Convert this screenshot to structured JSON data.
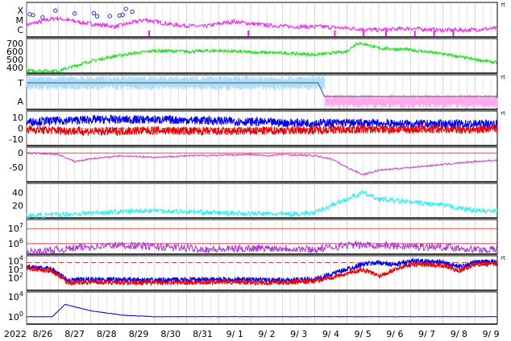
{
  "figure": {
    "date_year": "2022",
    "date_labels": [
      "8/26",
      "8/27",
      "8/28",
      "8/29",
      "8/30",
      "8/31",
      "9/ 1",
      "9/ 2",
      "9/ 3",
      "9/ 4",
      "9/ 5",
      "9/ 6",
      "9/ 7",
      "9/ 8",
      "9/ 9"
    ],
    "corner_mark": "rt",
    "colors": {
      "magenta": "#ee22ee",
      "green": "#22dd22",
      "light_blue": "#aaddff",
      "pink": "#ffaaee",
      "blue": "#0000ee",
      "red": "#ee0000",
      "purple": "#aa33cc",
      "dark_magenta": "#cc44cc",
      "cyan": "#22eeee",
      "grid": "#cccccc"
    }
  },
  "chart_data": [
    {
      "type": "line",
      "panel": "xray-class",
      "yticklabels": [
        "X",
        "M",
        "C"
      ],
      "grid": true,
      "series": [
        {
          "color": "magenta",
          "values": [
            0.35,
            0.55,
            0.4,
            0.3,
            0.5,
            0.35,
            0.3,
            0.45,
            0.35,
            0.3,
            0.3,
            0.25,
            0.2,
            0.25,
            0.2,
            0.2,
            0.25
          ]
        }
      ],
      "markers_x_day": [
        0.1,
        0.2,
        0.5,
        0.9,
        1.5,
        2.1,
        2.2,
        2.6,
        2.9,
        3.0,
        3.1,
        3.3
      ]
    },
    {
      "type": "line",
      "panel": "solar-wind-speed",
      "yticks": [
        400,
        500,
        600,
        700
      ],
      "ylim": [
        330,
        760
      ],
      "grid": true,
      "series": [
        {
          "color": "green",
          "x_day": [
            0,
            1,
            2,
            2.5,
            3,
            4,
            5,
            6,
            7,
            8,
            9,
            10,
            10.3,
            10.6,
            11,
            12,
            13,
            14,
            14.7
          ],
          "values": [
            360,
            360,
            480,
            520,
            560,
            610,
            600,
            610,
            590,
            580,
            560,
            600,
            700,
            690,
            640,
            620,
            570,
            500,
            460
          ]
        }
      ]
    },
    {
      "type": "line",
      "panel": "ta-indicator",
      "yticklabels": [
        "T",
        "A"
      ],
      "grid": true,
      "series": [
        {
          "color": "light_blue",
          "x_day": [
            0,
            9.3
          ],
          "level": "T"
        },
        {
          "color": "pink",
          "x_day": [
            9.3,
            14.7
          ],
          "level": "A"
        }
      ]
    },
    {
      "type": "line",
      "panel": "imf",
      "yticks": [
        -10,
        0,
        10
      ],
      "ylim": [
        -16,
        16
      ],
      "grid": true,
      "series": [
        {
          "color": "blue",
          "x_day": [
            0,
            2,
            4,
            6,
            8,
            10,
            12,
            14,
            14.7
          ],
          "values": [
            6,
            8,
            8,
            7,
            5,
            5,
            4,
            4,
            4
          ]
        },
        {
          "color": "red",
          "x_day": [
            0,
            2,
            4,
            6,
            8,
            10,
            12,
            14,
            14.7
          ],
          "values": [
            -1,
            -3,
            -2,
            -3,
            -2,
            -1,
            -1,
            -1,
            0
          ]
        }
      ]
    },
    {
      "type": "line",
      "panel": "dst",
      "yticks": [
        -50,
        0
      ],
      "ylim": [
        -100,
        20
      ],
      "grid": true,
      "series": [
        {
          "color": "dark_magenta",
          "x_day": [
            0,
            1,
            1.5,
            2,
            3,
            4,
            5,
            6,
            7,
            7.5,
            8,
            9,
            9.5,
            10,
            10.5,
            11,
            12,
            13,
            14,
            14.7
          ],
          "values": [
            0,
            -5,
            -30,
            -20,
            -10,
            -15,
            -10,
            -8,
            -5,
            -10,
            -5,
            -10,
            -20,
            -50,
            -75,
            -60,
            -50,
            -40,
            -30,
            -25
          ]
        }
      ]
    },
    {
      "type": "line",
      "panel": "kp-index",
      "yticks": [
        20,
        40
      ],
      "ylim": [
        0,
        55
      ],
      "grid": true,
      "series": [
        {
          "color": "cyan",
          "x_day": [
            0,
            1,
            2,
            3,
            4,
            5,
            6,
            7,
            8,
            9,
            9.5,
            10,
            10.5,
            11,
            12,
            13,
            14,
            14.7
          ],
          "values": [
            3,
            5,
            8,
            10,
            12,
            10,
            8,
            7,
            6,
            8,
            20,
            30,
            40,
            30,
            25,
            20,
            12,
            10
          ]
        }
      ]
    },
    {
      "type": "line",
      "panel": "electron-flux",
      "ytick_bases": [
        "10",
        "10"
      ],
      "ytick_exponents": [
        "6",
        "7"
      ],
      "ylim_log": [
        5.3,
        7.6
      ],
      "thresholds_log": [
        6,
        7
      ],
      "grid": true,
      "series": [
        {
          "color": "purple",
          "x_day": [
            0,
            1,
            2,
            3,
            4,
            5,
            6,
            7,
            8,
            9,
            10,
            11,
            12,
            13,
            14,
            14.7
          ],
          "values_log": [
            5.4,
            5.6,
            5.8,
            5.9,
            5.8,
            5.7,
            5.6,
            5.7,
            5.7,
            5.6,
            5.9,
            5.9,
            5.8,
            5.8,
            5.6,
            5.6
          ]
        }
      ]
    },
    {
      "type": "line",
      "panel": "proton-flux",
      "ytick_bases": [
        "10",
        "10",
        "10"
      ],
      "ytick_exponents": [
        "2",
        "3",
        "4"
      ],
      "ylim_log": [
        0.5,
        4.6
      ],
      "threshold_log": 3.8,
      "grid": true,
      "series": [
        {
          "color": "blue",
          "x_day": [
            0,
            0.8,
            1.3,
            2,
            4,
            6,
            8,
            9,
            10,
            10.5,
            11,
            11.5,
            12,
            13,
            13.5,
            14,
            14.7
          ],
          "values_log": [
            3.3,
            3.0,
            1.7,
            1.8,
            1.7,
            1.8,
            1.7,
            1.8,
            3.0,
            3.6,
            3.8,
            3.5,
            4.0,
            3.8,
            3.3,
            3.8,
            3.9
          ]
        },
        {
          "color": "red",
          "x_day": [
            0,
            0.8,
            1.3,
            2,
            4,
            6,
            8,
            9,
            10,
            10.5,
            11,
            11.5,
            12,
            13,
            13.5,
            14,
            14.7
          ],
          "values_log": [
            3.1,
            2.8,
            1.4,
            1.5,
            1.4,
            1.5,
            1.4,
            1.6,
            2.5,
            3.0,
            2.2,
            3.0,
            3.6,
            3.5,
            2.8,
            3.6,
            3.7
          ]
        }
      ]
    },
    {
      "type": "line",
      "panel": "electron-flux-2",
      "ytick_bases": [
        "10",
        "10"
      ],
      "ytick_exponents": [
        "0",
        "4"
      ],
      "ylim_log": [
        -1.5,
        5
      ],
      "grid": true,
      "series": [
        {
          "color": "blue",
          "x_day": [
            0,
            0.8,
            1.2,
            2,
            3,
            4,
            14.7
          ],
          "values_log": [
            0,
            0,
            2.5,
            1.2,
            0.3,
            0,
            0
          ]
        }
      ]
    }
  ]
}
